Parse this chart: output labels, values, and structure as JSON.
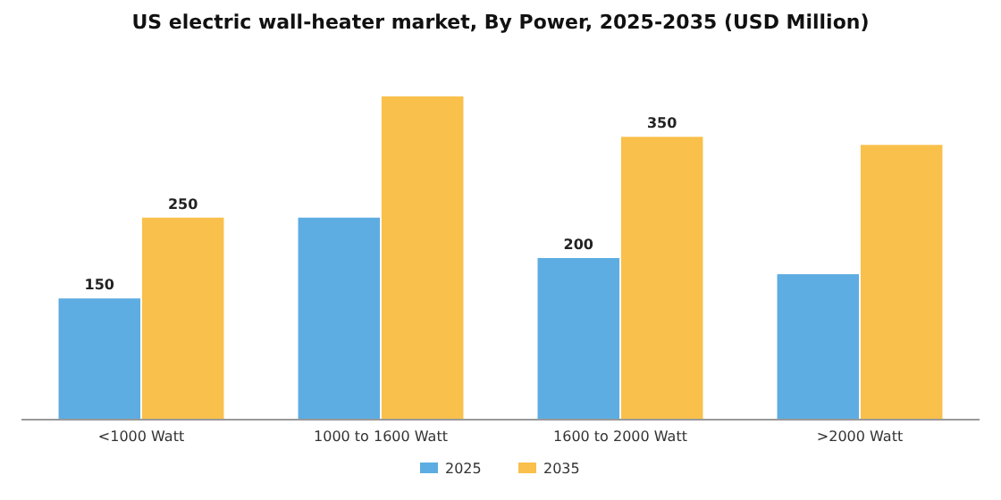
{
  "chart_data": {
    "type": "bar",
    "title": "US electric wall-heater market, By Power, 2025-2035 (USD Million)",
    "categories": [
      "<1000 Watt",
      "1000 to 1600 Watt",
      "1600 to 2000 Watt",
      ">2000 Watt"
    ],
    "series": [
      {
        "name": "2025",
        "color": "#5dade2",
        "values": [
          150,
          250,
          200,
          180
        ],
        "value_labels": [
          "150",
          null,
          "200",
          null
        ]
      },
      {
        "name": "2035",
        "color": "#f9c04b",
        "values": [
          250,
          400,
          350,
          340
        ],
        "value_labels": [
          "250",
          null,
          "350",
          null
        ]
      }
    ],
    "legend": "bottom",
    "grid": false
  }
}
